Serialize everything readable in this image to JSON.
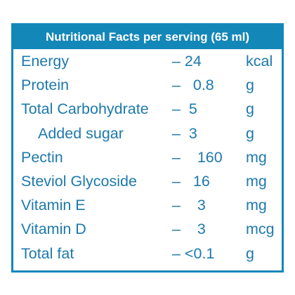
{
  "header": "Nutritional Facts per serving (65 ml)",
  "rows": [
    {
      "name": "Energy",
      "value": "– 24",
      "unit": "kcal"
    },
    {
      "name": "Protein",
      "value": "–   0.8",
      "unit": "g"
    },
    {
      "name": "Total Carbohydrate",
      "value": "–  5",
      "unit": "g"
    },
    {
      "name": "Added sugar",
      "value": "–  3",
      "unit": "g"
    },
    {
      "name": "Pectin",
      "value": "–    160",
      "unit": "mg"
    },
    {
      "name": "Steviol Glycoside",
      "value": "–   16",
      "unit": "mg"
    },
    {
      "name": "Vitamin E",
      "value": "–    3",
      "unit": "mg"
    },
    {
      "name": "Vitamin D",
      "value": "–    3",
      "unit": "mcg"
    },
    {
      "name": "Total fat",
      "value": "– <0.1",
      "unit": "g"
    }
  ],
  "colors": {
    "brand_blue": "#1487b9",
    "text_blue": "#1d79ad",
    "header_text": "#ffffff"
  }
}
